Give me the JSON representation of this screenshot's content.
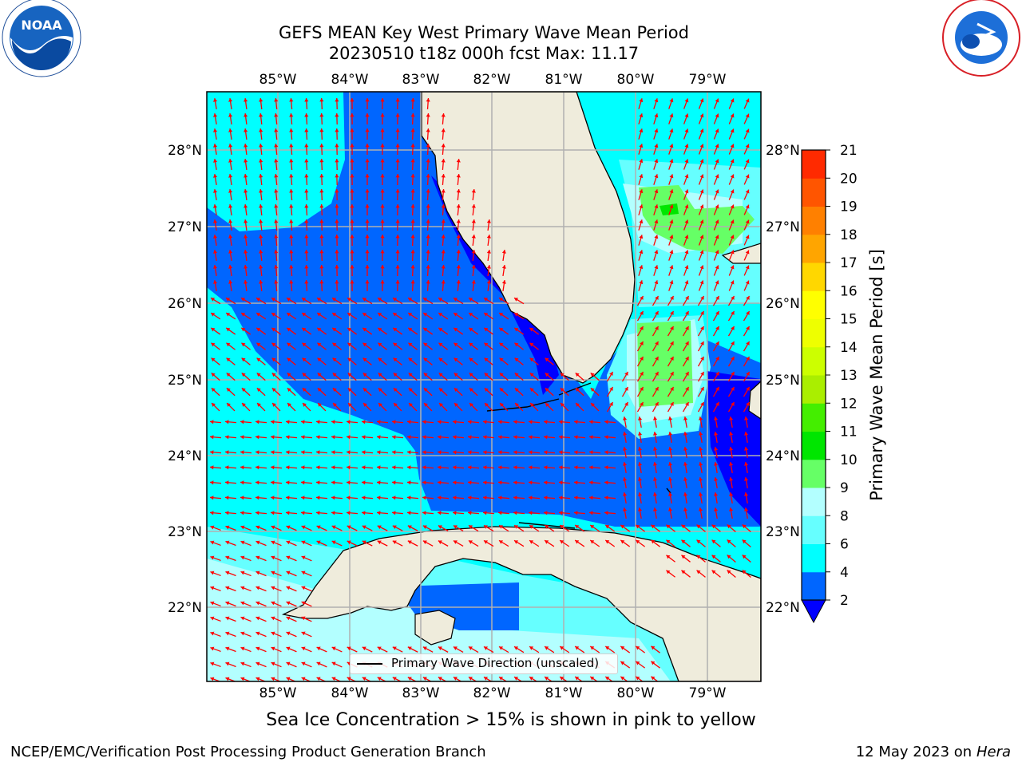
{
  "title_line1": "GEFS MEAN Key West Primary Wave Mean Period",
  "title_line2": "20230510 t18z 000h fcst   Max: 11.17",
  "lon_labels": [
    "85°W",
    "84°W",
    "83°W",
    "82°W",
    "81°W",
    "80°W",
    "79°W"
  ],
  "lat_labels": [
    "28°N",
    "27°N",
    "26°N",
    "25°N",
    "24°N",
    "23°N",
    "22°N"
  ],
  "colorbar": {
    "label": "Primary Wave Mean Period [s]",
    "ticks": [
      "2",
      "4",
      "6",
      "8",
      "9",
      "10",
      "11",
      "12",
      "13",
      "14",
      "15",
      "16",
      "17",
      "18",
      "19",
      "20",
      "21"
    ],
    "colors": [
      "#0066ff",
      "#00ffff",
      "#66ffff",
      "#b3ffff",
      "#66ff66",
      "#00e600",
      "#44ee00",
      "#aaee00",
      "#ccff00",
      "#eeff00",
      "#ffff00",
      "#ffd700",
      "#ffa500",
      "#ff8000",
      "#ff5500",
      "#ff2a00"
    ],
    "extend_color": "#0000ff"
  },
  "legend_text": "Primary Wave Direction (unscaled)",
  "caption": "Sea Ice Concentration > 15% is shown in pink to yellow",
  "credit": "NCEP/EMC/Verification Post Processing Product Generation Branch",
  "date_text": "12 May 2023 on",
  "date_host": "Hera",
  "logos": {
    "left": "NOAA",
    "right": "NATIONAL WEATHER SERVICE"
  },
  "map": {
    "lon_range": [
      -86.0,
      -78.25
    ],
    "lat_range": [
      21.05,
      28.75
    ],
    "arrow_color": "#ff0000",
    "land_color": "#efecdc"
  }
}
